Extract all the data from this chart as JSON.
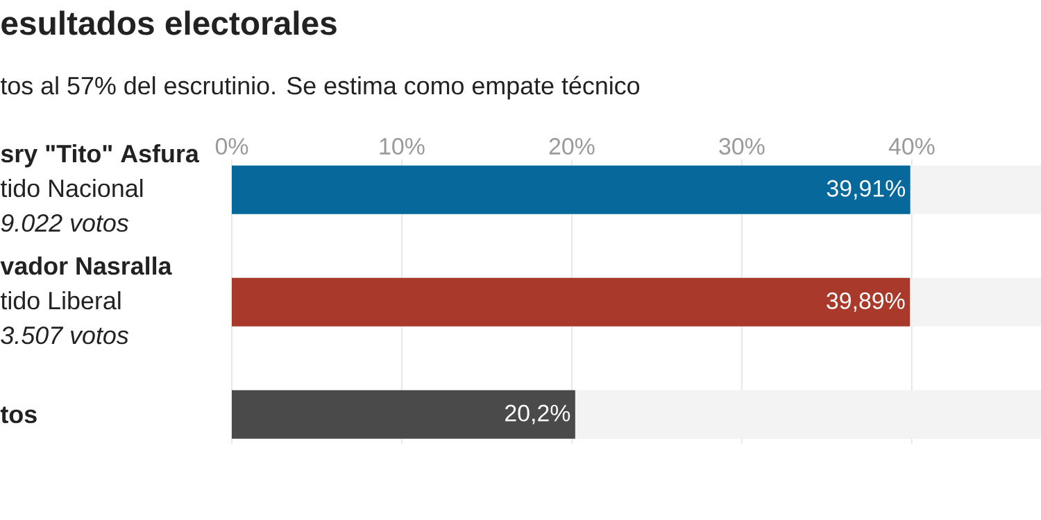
{
  "chart_data": {
    "type": "bar",
    "orientation": "horizontal",
    "title": "esultados electorales",
    "subtitle": "tos al 57% del escrutinio. Se estima como empate técnico",
    "categories": [
      "sry \"Tito\" Asfura",
      "vador Nasralla",
      "tos"
    ],
    "annotations": [
      "tido Nacional",
      "9.022 votos",
      "tido Liberal",
      "3.507 votos"
    ],
    "values": [
      39.91,
      39.89,
      20.2
    ],
    "colors": [
      "#07699b",
      "#a8392b",
      "#4a4a4a"
    ],
    "value_labels": [
      "39,91%",
      "39,89%",
      "20,2%"
    ],
    "xlim": [
      0,
      47.6
    ],
    "xticks": [
      {
        "value": 0,
        "label": "0%"
      },
      {
        "value": 10,
        "label": "10%"
      },
      {
        "value": 20,
        "label": "20%"
      },
      {
        "value": 30,
        "label": "30%"
      },
      {
        "value": 40,
        "label": "40%"
      }
    ],
    "grid": "x"
  }
}
